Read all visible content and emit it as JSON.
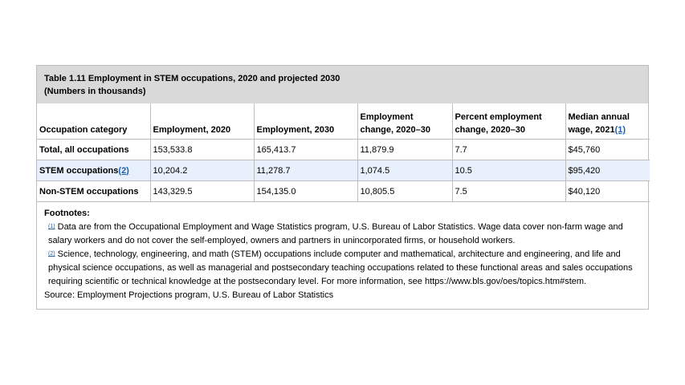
{
  "table": {
    "title": "Table 1.11 Employment in STEM occupations, 2020 and projected 2030",
    "subtitle": "(Numbers in thousands)",
    "headers": {
      "category": "Occupation category",
      "emp2020": "Employment, 2020",
      "emp2030": "Employment, 2030",
      "change_line1": "Employment",
      "change_line2": "change, 2020–30",
      "pct_line1": "Percent employment",
      "pct_line2": "change, 2020–30",
      "wage_line1": "Median annual",
      "wage_line2": "wage, 2021",
      "wage_ref": "(1)"
    },
    "rows": [
      {
        "category": "Total, all occupations",
        "ref": "",
        "emp2020": "153,533.8",
        "emp2030": "165,413.7",
        "change": "11,879.9",
        "pct": "7.7",
        "wage": "$45,760"
      },
      {
        "category": "STEM occupations",
        "ref": "(2)",
        "emp2020": "10,204.2",
        "emp2030": "11,278.7",
        "change": "1,074.5",
        "pct": "10.5",
        "wage": "$95,420"
      },
      {
        "category": "Non-STEM occupations",
        "ref": "",
        "emp2020": "143,329.5",
        "emp2030": "154,135.0",
        "change": "10,805.5",
        "pct": "7.5",
        "wage": "$40,120"
      }
    ]
  },
  "footnotes": {
    "heading": "Footnotes:",
    "items": [
      {
        "marker": "(1)",
        "text": "Data are from the Occupational Employment and Wage Statistics program, U.S. Bureau of Labor Statistics. Wage data cover non-farm wage and salary workers and do not cover the self-employed, owners and partners in unincorporated firms, or household workers."
      },
      {
        "marker": "(2)",
        "text": "Science, technology, engineering, and math (STEM) occupations include computer and mathematical, architecture and engineering, and life and physical science occupations, as well as managerial and postsecondary teaching occupations related to these functional areas and sales occupations requiring scientific or technical knowledge at the postsecondary level. For more information, see https://www.bls.gov/oes/topics.htm#stem."
      }
    ],
    "source": "Source: Employment Projections program, U.S. Bureau of Labor Statistics"
  }
}
